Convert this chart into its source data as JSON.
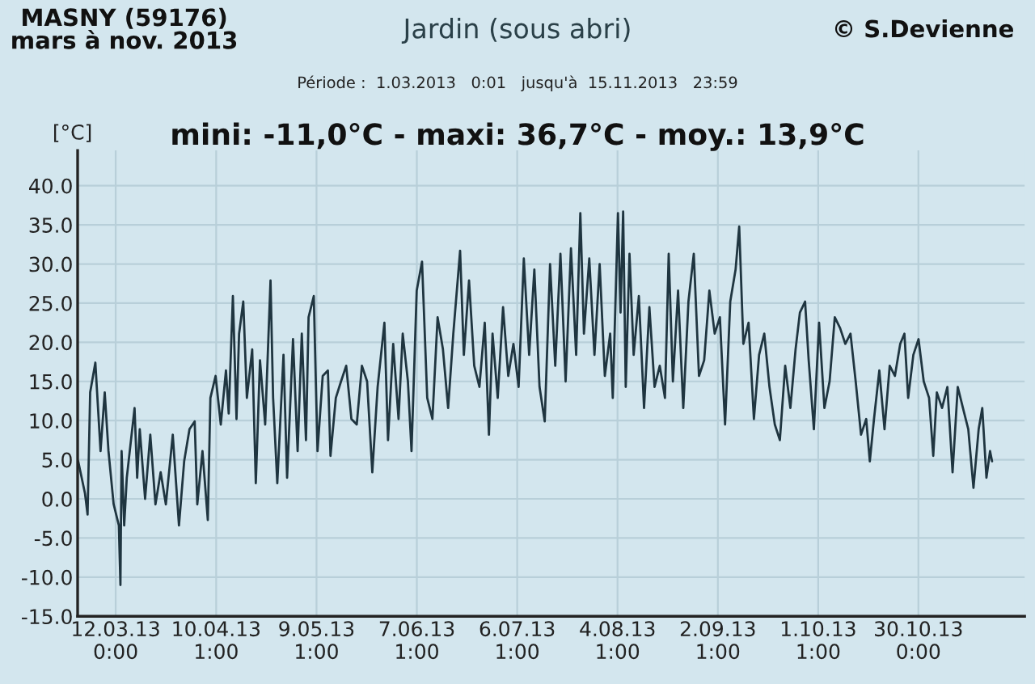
{
  "chart_data": {
    "type": "line",
    "title": "Jardin (sous abri)",
    "subtitle": "Période :  1.03.2013   0:01   jusqu'à  15.11.2013   23:59",
    "ylabel": "[°C]",
    "annotations": [
      "MASNY (59176)\nmars à nov. 2013",
      "© S.Devienne",
      "mini: -11,0°C - maxi: 36,7°C - moy.: 13,9°C"
    ],
    "xlim": [
      "2013-03-01T00:00",
      "2013-11-29T17:00"
    ],
    "xticks": [
      {
        "value": "2013-03-12T00:00",
        "label": "12.03.13\n0:00"
      },
      {
        "value": "2013-04-10T01:00",
        "label": "10.04.13\n1:00"
      },
      {
        "value": "2013-05-09T01:00",
        "label": "9.05.13\n1:00"
      },
      {
        "value": "2013-06-07T01:00",
        "label": "7.06.13\n1:00"
      },
      {
        "value": "2013-07-06T01:00",
        "label": "6.07.13\n1:00"
      },
      {
        "value": "2013-08-04T01:00",
        "label": "4.08.13\n1:00"
      },
      {
        "value": "2013-09-02T01:00",
        "label": "2.09.13\n1:00"
      },
      {
        "value": "2013-10-01T01:00",
        "label": "1.10.13\n1:00"
      },
      {
        "value": "2013-10-30T00:00",
        "label": "30.10.13\n0:00"
      }
    ],
    "ylim": [
      -15,
      44.5
    ],
    "yticks": [
      {
        "value": -15,
        "label": "-15.0"
      },
      {
        "value": -10,
        "label": "-10.0"
      },
      {
        "value": -5,
        "label": "-5.0"
      },
      {
        "value": 0,
        "label": "0.0"
      },
      {
        "value": 5,
        "label": "5.0"
      },
      {
        "value": 10,
        "label": "10.0"
      },
      {
        "value": 15,
        "label": "15.0"
      },
      {
        "value": 20,
        "label": "20.0"
      },
      {
        "value": 25,
        "label": "25.0"
      },
      {
        "value": 30,
        "label": "30.0"
      },
      {
        "value": 35,
        "label": "35.0"
      },
      {
        "value": 40,
        "label": "40.0"
      }
    ],
    "grid": true,
    "legend": false,
    "marker": "none",
    "line_style": "solid",
    "series": [
      {
        "color": "#1f3540",
        "x": [
          "2013-03-01T04:00",
          "2013-03-03T03:00",
          "2013-03-03T21:00",
          "2013-03-04T15:00",
          "2013-03-06T03:00",
          "2013-03-07T15:00",
          "2013-03-08T20:00",
          "2013-03-09T22:00",
          "2013-03-11T10:00",
          "2013-03-12T22:00",
          "2013-03-13T09:00",
          "2013-03-13T17:00",
          "2013-03-14T11:00",
          "2013-03-15T05:00",
          "2013-03-17T11:00",
          "2013-03-18T05:00",
          "2013-03-18T23:00",
          "2013-03-20T12:00",
          "2013-03-22T00:00",
          "2013-03-23T12:00",
          "2013-03-25T00:00",
          "2013-03-26T12:00",
          "2013-03-28T12:00",
          "2013-03-30T07:00",
          "2013-03-31T19:00",
          "2013-04-02T08:00",
          "2013-04-03T20:00",
          "2013-04-04T14:00",
          "2013-04-06T02:00",
          "2013-04-07T15:00",
          "2013-04-08T09:00",
          "2013-04-09T21:00",
          "2013-04-11T09:00",
          "2013-04-12T21:00",
          "2013-04-13T16:00",
          "2013-04-14T21:00",
          "2013-04-15T22:00",
          "2013-04-16T16:00",
          "2013-04-17T21:00",
          "2013-04-18T22:00",
          "2013-04-20T11:00",
          "2013-04-21T12:00",
          "2013-04-22T17:00",
          "2013-04-24T05:00",
          "2013-04-25T18:00",
          "2013-04-26T12:00",
          "2013-04-27T17:00",
          "2013-04-29T12:00",
          "2013-04-30T13:00",
          "2013-05-02T06:00",
          "2013-05-03T14:00",
          "2013-05-04T19:00",
          "2013-05-06T00:00",
          "2013-05-06T18:00",
          "2013-05-08T06:00",
          "2013-05-09T08:00",
          "2013-05-10T20:00",
          "2013-05-12T08:00",
          "2013-05-13T02:00",
          "2013-05-14T15:00",
          "2013-05-16T03:00",
          "2013-05-17T15:00",
          "2013-05-19T03:00",
          "2013-05-20T16:00",
          "2013-05-22T04:00",
          "2013-05-23T16:00",
          "2013-05-25T04:00",
          "2013-05-26T17:00",
          "2013-05-28T16:00",
          "2013-05-29T17:00",
          "2013-05-31T05:00",
          "2013-06-01T18:00",
          "2013-06-02T23:00",
          "2013-06-04T11:00",
          "2013-06-05T12:00",
          "2013-06-07T00:00",
          "2013-06-08T13:00",
          "2013-06-10T01:00",
          "2013-06-11T13:00",
          "2013-06-13T01:00",
          "2013-06-14T14:00",
          "2013-06-16T02:00",
          "2013-06-17T14:00",
          "2013-06-19T13:00",
          "2013-06-20T15:00",
          "2013-06-22T03:00",
          "2013-06-23T15:00",
          "2013-06-25T03:00",
          "2013-06-26T16:00",
          "2013-06-27T21:00",
          "2013-06-28T22:00",
          "2013-06-30T10:00",
          "2013-07-01T23:00",
          "2013-07-03T11:00",
          "2013-07-04T23:00",
          "2013-07-06T11:00",
          "2013-07-07T23:00",
          "2013-07-09T12:00",
          "2013-07-11T00:00",
          "2013-07-12T12:00",
          "2013-07-14T00:00",
          "2013-07-15T13:00",
          "2013-07-17T01:00",
          "2013-07-18T13:00",
          "2013-07-20T01:00",
          "2013-07-21T14:00",
          "2013-07-23T02:00",
          "2013-07-24T07:00",
          "2013-07-25T08:00",
          "2013-07-26T21:00",
          "2013-07-28T09:00",
          "2013-07-29T21:00",
          "2013-07-31T09:00",
          "2013-08-01T22:00",
          "2013-08-02T16:00",
          "2013-08-04T04:00",
          "2013-08-04T22:00",
          "2013-08-05T16:00",
          "2013-08-06T10:00",
          "2013-08-07T12:00",
          "2013-08-08T17:00",
          "2013-08-10T05:00",
          "2013-08-11T17:00",
          "2013-08-13T06:00",
          "2013-08-14T18:00",
          "2013-08-16T06:00",
          "2013-08-17T18:00",
          "2013-08-18T20:00",
          "2013-08-20T01:00",
          "2013-08-21T13:00",
          "2013-08-23T01:00",
          "2013-08-24T13:00",
          "2013-08-26T02:00",
          "2013-08-27T14:00",
          "2013-08-29T02:00",
          "2013-08-30T14:00",
          "2013-09-01T03:00",
          "2013-09-02T15:00",
          "2013-09-04T03:00",
          "2013-09-05T15:00",
          "2013-09-07T04:00",
          "2013-09-08T05:00",
          "2013-09-09T10:00",
          "2013-09-10T22:00",
          "2013-09-12T11:00",
          "2013-09-13T23:00",
          "2013-09-15T11:00",
          "2013-09-16T23:00",
          "2013-09-18T12:00",
          "2013-09-19T23:00",
          "2013-09-21T12:00",
          "2013-09-23T00:00",
          "2013-09-24T12:00",
          "2013-09-25T18:00",
          "2013-09-27T06:00",
          "2013-09-28T07:00",
          "2013-09-29T19:00",
          "2013-10-01T07:00",
          "2013-10-02T20:00",
          "2013-10-04T08:00",
          "2013-10-05T20:00",
          "2013-10-07T09:00",
          "2013-10-08T21:00",
          "2013-10-10T09:00",
          "2013-10-11T21:00",
          "2013-10-13T10:00",
          "2013-10-14T22:00",
          "2013-10-15T23:00",
          "2013-10-17T04:00",
          "2013-10-18T17:00",
          "2013-10-20T05:00",
          "2013-10-21T17:00",
          "2013-10-23T05:00",
          "2013-10-24T18:00",
          "2013-10-25T23:00",
          "2013-10-27T01:00",
          "2013-10-28T13:00",
          "2013-10-30T01:00",
          "2013-10-31T13:00",
          "2013-11-02T02:00",
          "2013-11-03T07:00",
          "2013-11-04T08:00",
          "2013-11-05T20:00",
          "2013-11-07T09:00",
          "2013-11-08T21:00",
          "2013-11-10T09:00",
          "2013-11-11T21:00",
          "2013-11-13T10:00",
          "2013-11-14T22:00",
          "2013-11-16T10:00",
          "2013-11-17T11:00",
          "2013-11-18T16:00",
          "2013-11-19T17:00",
          "2013-11-20T07:00"
        ],
        "values": [
          4.8,
          0.7,
          -2.0,
          13.6,
          17.4,
          6.1,
          13.6,
          6.1,
          -0.7,
          -3.4,
          -11.0,
          6.1,
          -3.4,
          2.7,
          11.6,
          2.7,
          8.9,
          0.0,
          8.2,
          -0.7,
          3.4,
          -0.7,
          8.2,
          -3.4,
          4.8,
          8.9,
          9.9,
          -0.7,
          6.1,
          -2.7,
          12.9,
          15.7,
          9.5,
          16.4,
          10.9,
          25.9,
          10.2,
          21.1,
          25.2,
          12.9,
          19.1,
          2.0,
          17.7,
          9.5,
          27.9,
          12.9,
          2.0,
          18.4,
          2.7,
          20.4,
          6.1,
          21.1,
          7.5,
          23.2,
          25.9,
          6.1,
          15.7,
          16.4,
          5.5,
          12.9,
          15.0,
          17.0,
          10.2,
          9.5,
          17.0,
          15.0,
          3.4,
          14.3,
          22.5,
          7.5,
          19.8,
          10.2,
          21.1,
          15.0,
          6.1,
          26.6,
          30.3,
          12.9,
          10.2,
          23.2,
          19.1,
          11.6,
          21.1,
          31.7,
          18.4,
          27.9,
          17.0,
          14.3,
          22.5,
          8.2,
          21.1,
          12.9,
          24.5,
          15.7,
          19.8,
          14.3,
          30.7,
          18.4,
          29.3,
          14.3,
          9.9,
          30.0,
          17.0,
          31.3,
          15.0,
          32.0,
          18.4,
          36.5,
          21.1,
          30.7,
          18.4,
          30.0,
          15.7,
          21.1,
          12.9,
          36.5,
          23.8,
          36.7,
          14.3,
          31.3,
          18.4,
          25.9,
          11.6,
          24.5,
          14.3,
          17.0,
          12.9,
          31.3,
          15.0,
          26.6,
          11.6,
          25.2,
          31.3,
          15.7,
          17.7,
          26.6,
          21.1,
          23.2,
          9.5,
          25.2,
          29.3,
          34.8,
          19.8,
          22.5,
          10.2,
          18.4,
          21.1,
          14.3,
          9.5,
          7.5,
          17.0,
          11.6,
          19.1,
          23.8,
          25.2,
          17.7,
          8.9,
          22.5,
          11.6,
          15.0,
          23.2,
          21.8,
          19.8,
          21.1,
          15.0,
          8.2,
          10.2,
          4.8,
          10.2,
          16.4,
          8.9,
          17.0,
          15.7,
          19.8,
          21.1,
          12.9,
          18.4,
          20.4,
          15.0,
          12.9,
          5.5,
          13.6,
          11.6,
          14.3,
          3.4,
          14.3,
          11.6,
          8.9,
          1.4,
          8.9,
          11.6,
          2.7,
          6.1,
          4.8
        ]
      }
    ]
  }
}
